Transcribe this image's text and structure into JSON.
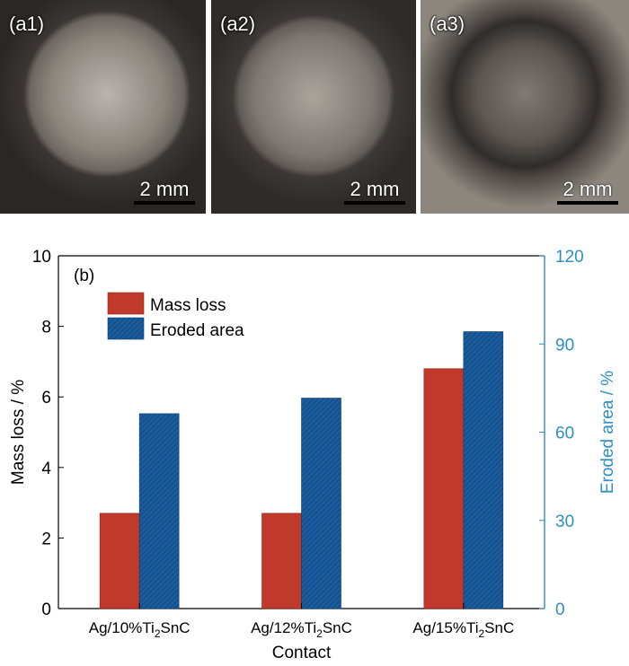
{
  "photos": [
    {
      "id": "a1",
      "label": "(a1)",
      "scale": "2 mm"
    },
    {
      "id": "a2",
      "label": "(a2)",
      "scale": "2 mm"
    },
    {
      "id": "a3",
      "label": "(a3)",
      "scale": "2 mm"
    }
  ],
  "colors": {
    "mass_loss": "#c0392b",
    "eroded_area": "#1a5c9e",
    "right_axis": "#2d8fc7"
  },
  "chart_data": {
    "type": "bar",
    "panel_label": "(b)",
    "categories": [
      "Ag/10%Ti2SnC",
      "Ag/12%Ti2SnC",
      "Ag/15%Ti2SnC"
    ],
    "category_labels": [
      {
        "pre": "Ag/10%Ti",
        "sub": "2",
        "post": "SnC"
      },
      {
        "pre": "Ag/12%Ti",
        "sub": "2",
        "post": "SnC"
      },
      {
        "pre": "Ag/15%Ti",
        "sub": "2",
        "post": "SnC"
      }
    ],
    "series": [
      {
        "name": "Mass loss",
        "axis": "left",
        "values": [
          2.7,
          2.7,
          6.8
        ]
      },
      {
        "name": "Eroded area",
        "axis": "right",
        "values": [
          66.3,
          71.6,
          94.2
        ]
      }
    ],
    "xlabel": "Contact",
    "ylabel": "Mass loss / %",
    "ylabel_right": "Eroded area / %",
    "ylim": [
      0,
      10
    ],
    "ylim_right": [
      0,
      120
    ],
    "yticks": [
      0,
      2,
      4,
      6,
      8,
      10
    ],
    "yticks_right": [
      0,
      30,
      60,
      90,
      120
    ],
    "legend_position": "top-left",
    "grid": false
  }
}
